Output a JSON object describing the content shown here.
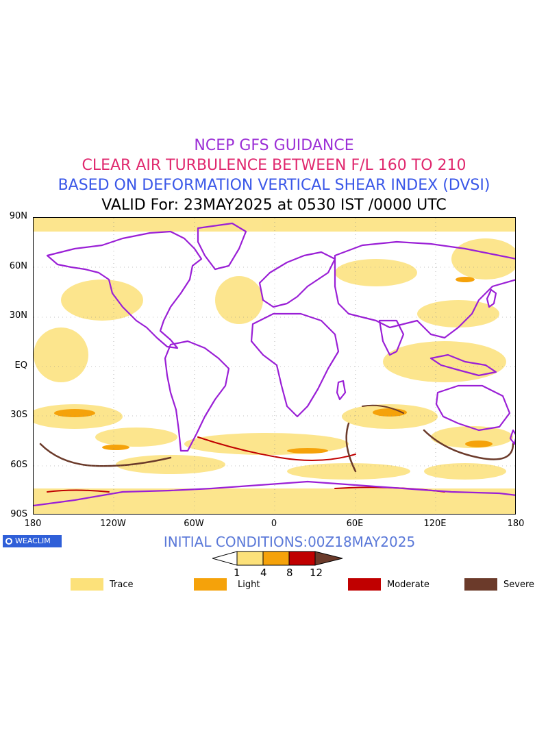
{
  "header": {
    "line1": "NCEP GFS GUIDANCE",
    "line2": "CLEAR AIR TURBULENCE BETWEEN F/L 160 TO 210",
    "line3": "BASED ON DEFORMATION VERTICAL SHEAR INDEX (DVSI)",
    "line4": "VALID For: 23MAY2025 at 0530 IST /0000 UTC"
  },
  "colors": {
    "line1": "#9b2fd6",
    "line2": "#e0286e",
    "line3": "#3a57e8",
    "line4": "#000000",
    "coast": "#9a1fd6",
    "trace": "#fce17a",
    "light": "#f5a20a",
    "moderate": "#c00000",
    "severe": "#6b3a2a",
    "initcond": "#5a78d8"
  },
  "axes": {
    "lat_labels": [
      "90N",
      "60N",
      "30N",
      "EQ",
      "30S",
      "60S",
      "90S"
    ],
    "lon_labels": [
      "180",
      "120W",
      "60W",
      "0",
      "60E",
      "120E",
      "180"
    ]
  },
  "logo": {
    "text": "WEACLIM"
  },
  "initial_conditions": "INITIAL CONDITIONS:00Z18MAY2025",
  "colorbar": {
    "thresholds": [
      "1",
      "4",
      "8",
      "12"
    ]
  },
  "legend": [
    {
      "label": "Trace",
      "color": "#fce17a"
    },
    {
      "label": "Light",
      "color": "#f5a20a"
    },
    {
      "label": "Moderate",
      "color": "#c00000"
    },
    {
      "label": "Severe",
      "color": "#6b3a2a"
    }
  ]
}
